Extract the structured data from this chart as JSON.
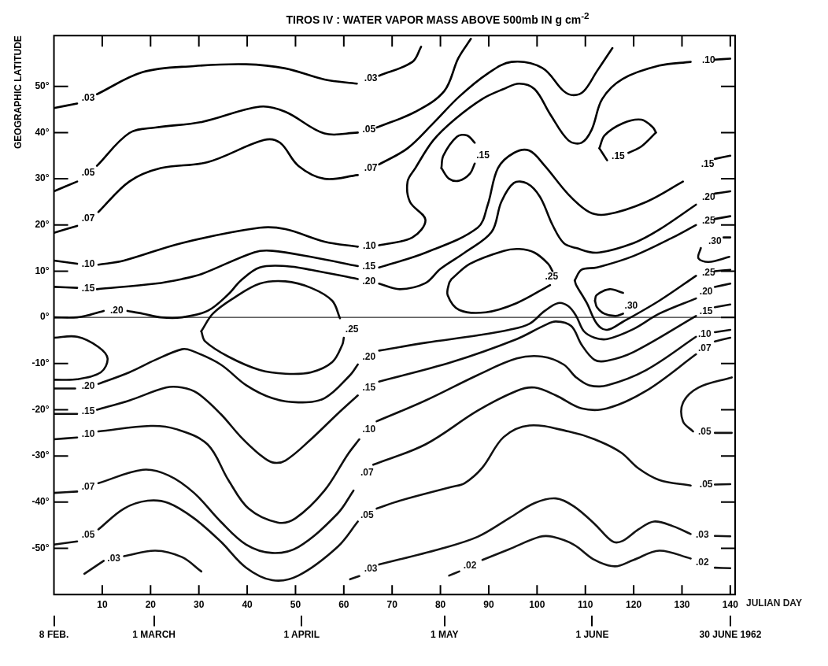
{
  "chart_data": {
    "type": "line",
    "title": "TIROS IV : WATER VAPOR MASS ABOVE 500mb IN g cm$^{-2}$",
    "xlabel": "JULIAN DAY",
    "ylabel": "GEOGRAPHIC LATITUDE",
    "xlim": [
      0,
      141
    ],
    "xticks": [
      10,
      20,
      30,
      40,
      50,
      60,
      70,
      80,
      90,
      100,
      110,
      120,
      130,
      140
    ],
    "ylim": [
      -60,
      61
    ],
    "yticks": [
      {
        "value": -50,
        "label": "-50°"
      },
      {
        "value": -40,
        "label": "-40°"
      },
      {
        "value": -30,
        "label": "-30°"
      },
      {
        "value": -20,
        "label": "-20°"
      },
      {
        "value": -10,
        "label": "-10°"
      },
      {
        "value": 0,
        "label": "0°"
      },
      {
        "value": 10,
        "label": "10°"
      },
      {
        "value": 20,
        "label": "20°"
      },
      {
        "value": 30,
        "label": "30°"
      },
      {
        "value": 40,
        "label": "40°"
      },
      {
        "value": 50,
        "label": "50°"
      }
    ],
    "x2lim": [
      "1962-02-08",
      "1962-07-01"
    ],
    "x2ticks": [
      {
        "value": "1962-02-08",
        "label": "8 FEB."
      },
      {
        "value": "1962-03-01",
        "label": "1 MARCH"
      },
      {
        "value": "1962-04-01",
        "label": "1 APRIL"
      },
      {
        "value": "1962-05-01",
        "label": "1 MAY"
      },
      {
        "value": "1962-06-01",
        "label": "1 JUNE"
      },
      {
        "value": "1962-06-30",
        "label": "30 JUNE 1962"
      }
    ],
    "ref_lines": [
      {
        "axis": "y",
        "value": 0,
        "color": "#000000"
      }
    ],
    "series": [
      {
        "color": "#000000",
        "x": [
          0,
          4.8,
          7.1,
          8.9,
          18.4,
          29,
          39.8,
          47.9,
          56,
          62.7,
          65.6,
          67.3,
          74.2,
          76
        ],
        "values": [
          45.3,
          46.3,
          null,
          48.3,
          53.1,
          54.4,
          54.8,
          53.9,
          51.5,
          50.6,
          null,
          52.3,
          55.3,
          58.6
        ]
      },
      {
        "color": "#010101",
        "x": [
          0,
          4.8,
          7.1,
          8.9,
          15.6,
          21,
          30.6,
          42.6,
          47.9,
          56,
          62.9,
          65.2,
          66.8,
          74.8,
          80.8,
          83.7,
          86.3
        ],
        "values": [
          27.3,
          29.4,
          null,
          32.8,
          39.9,
          41.1,
          42.3,
          45.6,
          44.5,
          39.8,
          40,
          null,
          41.1,
          44.5,
          49,
          56.1,
          60.3
        ]
      },
      {
        "color": "#020202",
        "x": [
          0,
          4.8,
          7.1,
          9.2,
          15.6,
          22.1,
          31.8,
          43.5,
          46.8,
          50.6,
          56,
          62.9,
          65.6,
          67.3,
          73.2,
          78.5,
          83.9,
          89.8,
          94.7,
          101.1,
          105.5,
          107.6,
          109.7,
          112.4,
          115.6
        ],
        "values": [
          18.3,
          19.8,
          null,
          22.8,
          29.4,
          32.3,
          33.6,
          38.4,
          37.8,
          32.8,
          30,
          30.8,
          null,
          33.1,
          36.6,
          42,
          47.8,
          52.8,
          55.3,
          54,
          49,
          48.1,
          49,
          53.3,
          58.3
        ]
      },
      {
        "color": "#030303",
        "x": [
          0,
          4.8,
          7.1,
          9.2,
          14.5,
          26.5,
          42.6,
          47.9,
          56,
          62.9,
          65.3,
          67.3,
          74.2,
          76.9,
          73.7,
          73.2,
          74.8,
          78.5,
          82.9,
          88.7,
          93,
          96.3,
          99.5,
          102.7,
          106.5,
          109.2,
          111.3,
          113.5,
          117.7,
          125.3,
          131.8,
          135.5,
          136.8,
          140
        ],
        "values": [
          12.3,
          11.6,
          null,
          11.4,
          12.3,
          16.1,
          19.4,
          19.1,
          16.4,
          15.3,
          null,
          15.6,
          17.3,
          21.1,
          25,
          29.4,
          32.3,
          38.3,
          42.8,
          47.3,
          49.4,
          50.6,
          49.4,
          44,
          38.3,
          37.8,
          40.6,
          47.3,
          51.6,
          54.5,
          55.3,
          null,
          55.8,
          56
        ]
      },
      {
        "color": "#040404",
        "x": [
          80.2,
          80.6,
          83.4,
          85.5,
          87.1
        ],
        "values": [
          32.3,
          35,
          39.1,
          39.4,
          37.8
        ]
      },
      {
        "name": ".15",
        "color": "#040404",
        "x": [
          80.2,
          81.8,
          83.9,
          86.1,
          87.1
        ],
        "values": [
          32.3,
          30,
          29.6,
          31.1,
          33.3
        ]
      },
      {
        "color": "#050505",
        "x": [
          112.9,
          114,
          117.7,
          121.6,
          124,
          124.6
        ],
        "values": [
          36.6,
          39.4,
          42,
          42.8,
          41.1,
          40
        ]
      },
      {
        "color": "#050505",
        "x": [
          112.9,
          114.5,
          116.8,
          118.9,
          121.6,
          124.6
        ],
        "values": [
          36.6,
          34,
          null,
          35.6,
          37,
          40
        ]
      },
      {
        "color": "#060606",
        "x": [
          0,
          4.8,
          7.1,
          8.9,
          21,
          26.5,
          30.6,
          41.5,
          45.2,
          53.2,
          62.9,
          65.2,
          67.3,
          76.9,
          87.7,
          89.8,
          91.9,
          95.2,
          98.4,
          101.6,
          106.5,
          110.8,
          114.5,
          122.6,
          130.2,
          135.3,
          136.8,
          140
        ],
        "values": [
          6.6,
          6.4,
          null,
          6.1,
          7.3,
          8.3,
          9.4,
          14.1,
          14.4,
          13.1,
          11.1,
          null,
          10.8,
          14,
          19.4,
          24.4,
          32.3,
          35.6,
          36.1,
          32.8,
          26.6,
          22.8,
          22.3,
          25,
          29.4,
          null,
          34.3,
          35
        ]
      },
      {
        "color": "#070707",
        "x": [
          0,
          4.8,
          7.6,
          10.3,
          13,
          15.2,
          18.4,
          22.1,
          26.5,
          31.8,
          36.1,
          38.7,
          42.6,
          47.9,
          53.2,
          62.9,
          65.2,
          67.3,
          71.6,
          76.9,
          80,
          85,
          90.6,
          92.6,
          95.2,
          97.9,
          100.6,
          103.2,
          105.5,
          108.1,
          112.4,
          120,
          125.3,
          132.9,
          135.5,
          136.8,
          140
        ],
        "values": [
          0,
          0,
          0.6,
          1.4,
          null,
          1.4,
          0.8,
          0,
          0,
          1.4,
          5,
          8,
          10.8,
          11.1,
          10.3,
          8.3,
          null,
          7.3,
          6.1,
          7.4,
          10.5,
          14,
          18.5,
          25,
          29.1,
          29,
          26.1,
          20,
          16.1,
          15,
          14,
          16.1,
          19,
          24.4,
          null,
          26.8,
          27.3
        ]
      },
      {
        "color": "#080808",
        "x": [
          82.3,
          86.1,
          93.1,
          96.3,
          99.5,
          102.3,
          103.2,
          103,
          102.7,
          95.8,
          89.4,
          83.9,
          81.5,
          81.8,
          82.3
        ],
        "values": [
          8.3,
          11.6,
          14.4,
          14.8,
          14,
          11.6,
          10,
          null,
          7,
          3.1,
          1.1,
          1.6,
          4.8,
          7.4,
          8.3
        ]
      },
      {
        "color": "#090909",
        "x": [
          107.8,
          109.2,
          112.4,
          120,
          128.1,
          132.9,
          135.5,
          136.8,
          140
        ],
        "values": [
          8,
          10.3,
          10.8,
          13.3,
          17.3,
          20,
          null,
          21.3,
          21.9
        ]
      },
      {
        "color": "#090909",
        "x": [
          107.8,
          108.1,
          110.3,
          112.4,
          114.5,
          117.7,
          125.3,
          132.9,
          135.5,
          136.8,
          140
        ],
        "values": [
          8,
          7,
          3.1,
          -1.4,
          -2.7,
          -1,
          3.6,
          9,
          null,
          10,
          10.3
        ]
      },
      {
        "color": "#0a0a0a",
        "x": [
          112,
          112.3,
          115,
          117.8
        ],
        "values": [
          3.6,
          4.8,
          6.1,
          5.3
        ]
      },
      {
        "name": ".30",
        "color": "#0a0a0a",
        "x": [
          112,
          112.4,
          113.9,
          116.2,
          117.8
        ],
        "values": [
          3.6,
          2.2,
          0.8,
          0.3,
          0.8
        ]
      },
      {
        "color": "#0b0b0b",
        "x": [
          140,
          138.6,
          136.8,
          133.9,
          133.4,
          135.5,
          139.8
        ],
        "values": [
          17.3,
          17.3,
          null,
          15,
          12.8,
          12,
          13.1
        ]
      },
      {
        "color": "#0c0c0c",
        "x": [
          0,
          4.8,
          9.2,
          11.1,
          9.7,
          4.8,
          0
        ],
        "values": [
          -4.4,
          -4.2,
          -6.4,
          -8.9,
          -11.9,
          -13.4,
          -13.5
        ]
      },
      {
        "color": "#0d0d0d",
        "x": [
          30.5,
          32.9,
          37.1,
          42.6,
          47.9,
          53.2,
          57.6,
          59.2
        ],
        "values": [
          -3,
          0.8,
          4.1,
          7.3,
          7.8,
          6.4,
          3.6,
          -0.2
        ]
      },
      {
        "name": ".25",
        "color": "#0d0d0d",
        "x": [
          30.5,
          31.3,
          36.1,
          42.6,
          47.9,
          53.2,
          57.6,
          59.7,
          60
        ],
        "values": [
          -3,
          -5.2,
          -8.5,
          -11.4,
          -12.2,
          -11.9,
          -9.7,
          -5.9,
          -4.4
        ]
      },
      {
        "color": "#0e0e0e",
        "x": [
          0,
          4.4,
          7.1,
          9.2,
          15.6,
          21,
          26.5,
          28.5,
          34.5,
          39.8,
          45.2,
          50.6,
          56,
          61.3,
          62.9,
          65.2,
          67.3,
          76.9,
          87.7,
          94.2,
          98.4,
          101.6,
          104.4,
          106.5,
          108.1,
          109.7,
          111.9,
          114.5,
          120,
          125.3,
          132.9,
          135,
          136.8,
          140
        ],
        "values": [
          -15.4,
          -15.4,
          null,
          -14.4,
          -11.9,
          -9.2,
          -6.9,
          -7.2,
          -10.2,
          -14.7,
          -17.5,
          -18.4,
          -17.5,
          -12.5,
          -10.2,
          null,
          -7.2,
          -5.5,
          -3.9,
          -2.7,
          -1.4,
          1.4,
          3.1,
          2.4,
          0.3,
          -3,
          -4.4,
          -4.7,
          -2.5,
          0.8,
          4.1,
          null,
          6.6,
          7.3
        ]
      },
      {
        "color": "#0f0f0f",
        "x": [
          0,
          4.8,
          7.1,
          8.9,
          15.6,
          23.2,
          26.5,
          29.7,
          34.5,
          38.7,
          42.6,
          45.2,
          47.9,
          53.2,
          58.7,
          62.9,
          65.2,
          67.3,
          82.3,
          95.8,
          101.6,
          103.9,
          107.1,
          109.2,
          111.9,
          114.5,
          120,
          132.9,
          135,
          136.8,
          140
        ],
        "values": [
          -20.9,
          -20.9,
          null,
          -20,
          -18,
          -15.2,
          -15.2,
          -16.4,
          -20.9,
          -25.9,
          -29.7,
          -31.4,
          -31,
          -26.4,
          -20.9,
          -16.9,
          null,
          -13.9,
          -9.7,
          -4.7,
          -1.7,
          -0.9,
          -1.9,
          -5.9,
          -9.2,
          -9.4,
          -7.5,
          0.3,
          null,
          2.2,
          2.8
        ]
      },
      {
        "color": "#101010",
        "x": [
          0,
          4.8,
          7.1,
          9.2,
          20,
          25.3,
          31.8,
          36.1,
          40.3,
          46.3,
          50,
          56,
          60.8,
          63.2,
          65.2,
          66.8,
          76.9,
          87.7,
          95.8,
          101.1,
          105.5,
          108.1,
          110.8,
          114.5,
          122.6,
          132.9,
          134.7,
          136.8,
          140
        ],
        "values": [
          -26.4,
          -26,
          null,
          -24.7,
          -23.5,
          -24.2,
          -27.5,
          -35.2,
          -41.4,
          -44.4,
          -43.5,
          -37.5,
          -29.7,
          -26.4,
          null,
          -22.5,
          -18,
          -12.5,
          -8.9,
          -8.5,
          -10.2,
          -13,
          -14.7,
          -14.7,
          -11.4,
          -4.2,
          null,
          -3.2,
          -2.7
        ]
      },
      {
        "color": "#111111",
        "x": [
          0,
          4.8,
          7.1,
          9.2,
          18.4,
          23.7,
          29,
          34.5,
          39.8,
          45.2,
          50.6,
          58.7,
          62,
          64.8,
          66.1,
          76.9,
          87.7,
          95.8,
          99.5,
          103.9,
          109.2,
          114.5,
          122.6,
          132.9,
          134.7,
          136.8,
          140
        ],
        "values": [
          -38,
          -37.7,
          null,
          -35.9,
          -33,
          -34.2,
          -38,
          -44.2,
          -49.2,
          -51,
          -49.7,
          -42.5,
          -37.5,
          null,
          -31.9,
          -27.5,
          -20.2,
          -15.9,
          -15.2,
          -16.9,
          -19.7,
          -19.7,
          -15.9,
          -8,
          null,
          -5.2,
          -4.4
        ]
      },
      {
        "color": "#121212",
        "x": [
          0,
          4.8,
          7.1,
          9.2,
          14.5,
          19.4,
          23.7,
          29,
          34.5,
          39.8,
          45.2,
          50.6,
          58.7,
          62.9,
          64.8,
          66.8,
          71.6,
          82.3,
          85,
          88.7,
          93.1,
          98.4,
          106.5,
          111.9,
          117.3,
          121,
          125.3,
          131.8,
          135,
          136.8,
          140
        ],
        "values": [
          -49.2,
          -48.5,
          null,
          -45.9,
          -41.4,
          -39.7,
          -40.2,
          -43.5,
          -48.5,
          -54.2,
          -56.9,
          -55.9,
          -49.7,
          -44.2,
          null,
          -41.4,
          -39.7,
          -36.7,
          -35.9,
          -32.5,
          -25.9,
          -23.4,
          -24.7,
          -26.4,
          -29.2,
          -32.7,
          -35.2,
          -36.4,
          null,
          -36.2,
          -36.1
        ]
      },
      {
        "color": "#131313",
        "x": [
          140.3,
          133.4,
          130.2,
          130.2,
          132.3,
          134.7,
          136.8,
          140.3
        ],
        "values": [
          -13,
          -15.2,
          -18.5,
          -22.5,
          -24.7,
          null,
          -25,
          -25
        ]
      },
      {
        "color": "#141414",
        "x": [
          6.3,
          10.3,
          12.4,
          14.5,
          21,
          26.5,
          30.5
        ],
        "values": [
          -55.5,
          -52.7,
          null,
          -51.7,
          -50.5,
          -51.9,
          -55
        ]
      },
      {
        "color": "#151515",
        "x": [
          61.3,
          63.2,
          65.6,
          67.3,
          79.7,
          87.7,
          94.2,
          99.5,
          103.9,
          107.6,
          111.9,
          115.6,
          117.7,
          121,
          124.2,
          128.1,
          131.8,
          134.2,
          136.8,
          140
        ],
        "values": [
          -56.7,
          -56,
          null,
          -53.5,
          -50.2,
          -47.5,
          -43.5,
          -40.2,
          -39.2,
          -40.9,
          -44.7,
          -48.5,
          -48.4,
          -45.9,
          -44.2,
          -45.2,
          -46.9,
          null,
          -47.3,
          -47.4
        ]
      },
      {
        "color": "#161616",
        "x": [
          81.8,
          83.9,
          86.1,
          88.7,
          94.2,
          100.6,
          103.2,
          107.6,
          111.9,
          116.1,
          120,
          125.3,
          131.8,
          134.2,
          136.8,
          140
        ],
        "values": [
          -55.9,
          -55,
          null,
          -52.5,
          -50.2,
          -47.5,
          -47.5,
          -49.2,
          -52.5,
          -53.9,
          -52.5,
          -50.5,
          -52.2,
          null,
          -54.2,
          -54.3
        ]
      }
    ],
    "annotations": [
      ".03",
      ".03",
      ".05",
      ".05",
      ".07",
      ".07",
      ".10",
      ".10",
      ".10",
      ".15",
      ".15",
      ".15",
      ".15",
      ".20",
      ".20",
      ".20",
      ".25",
      ".25",
      ".25",
      ".30",
      ".20",
      ".20",
      ".20",
      ".15",
      ".15",
      ".15",
      ".10",
      ".10",
      ".10",
      ".07",
      ".07",
      ".07",
      ".05",
      ".05",
      ".05",
      ".05",
      ".03",
      ".03",
      ".03",
      ".02",
      ".02"
    ]
  }
}
